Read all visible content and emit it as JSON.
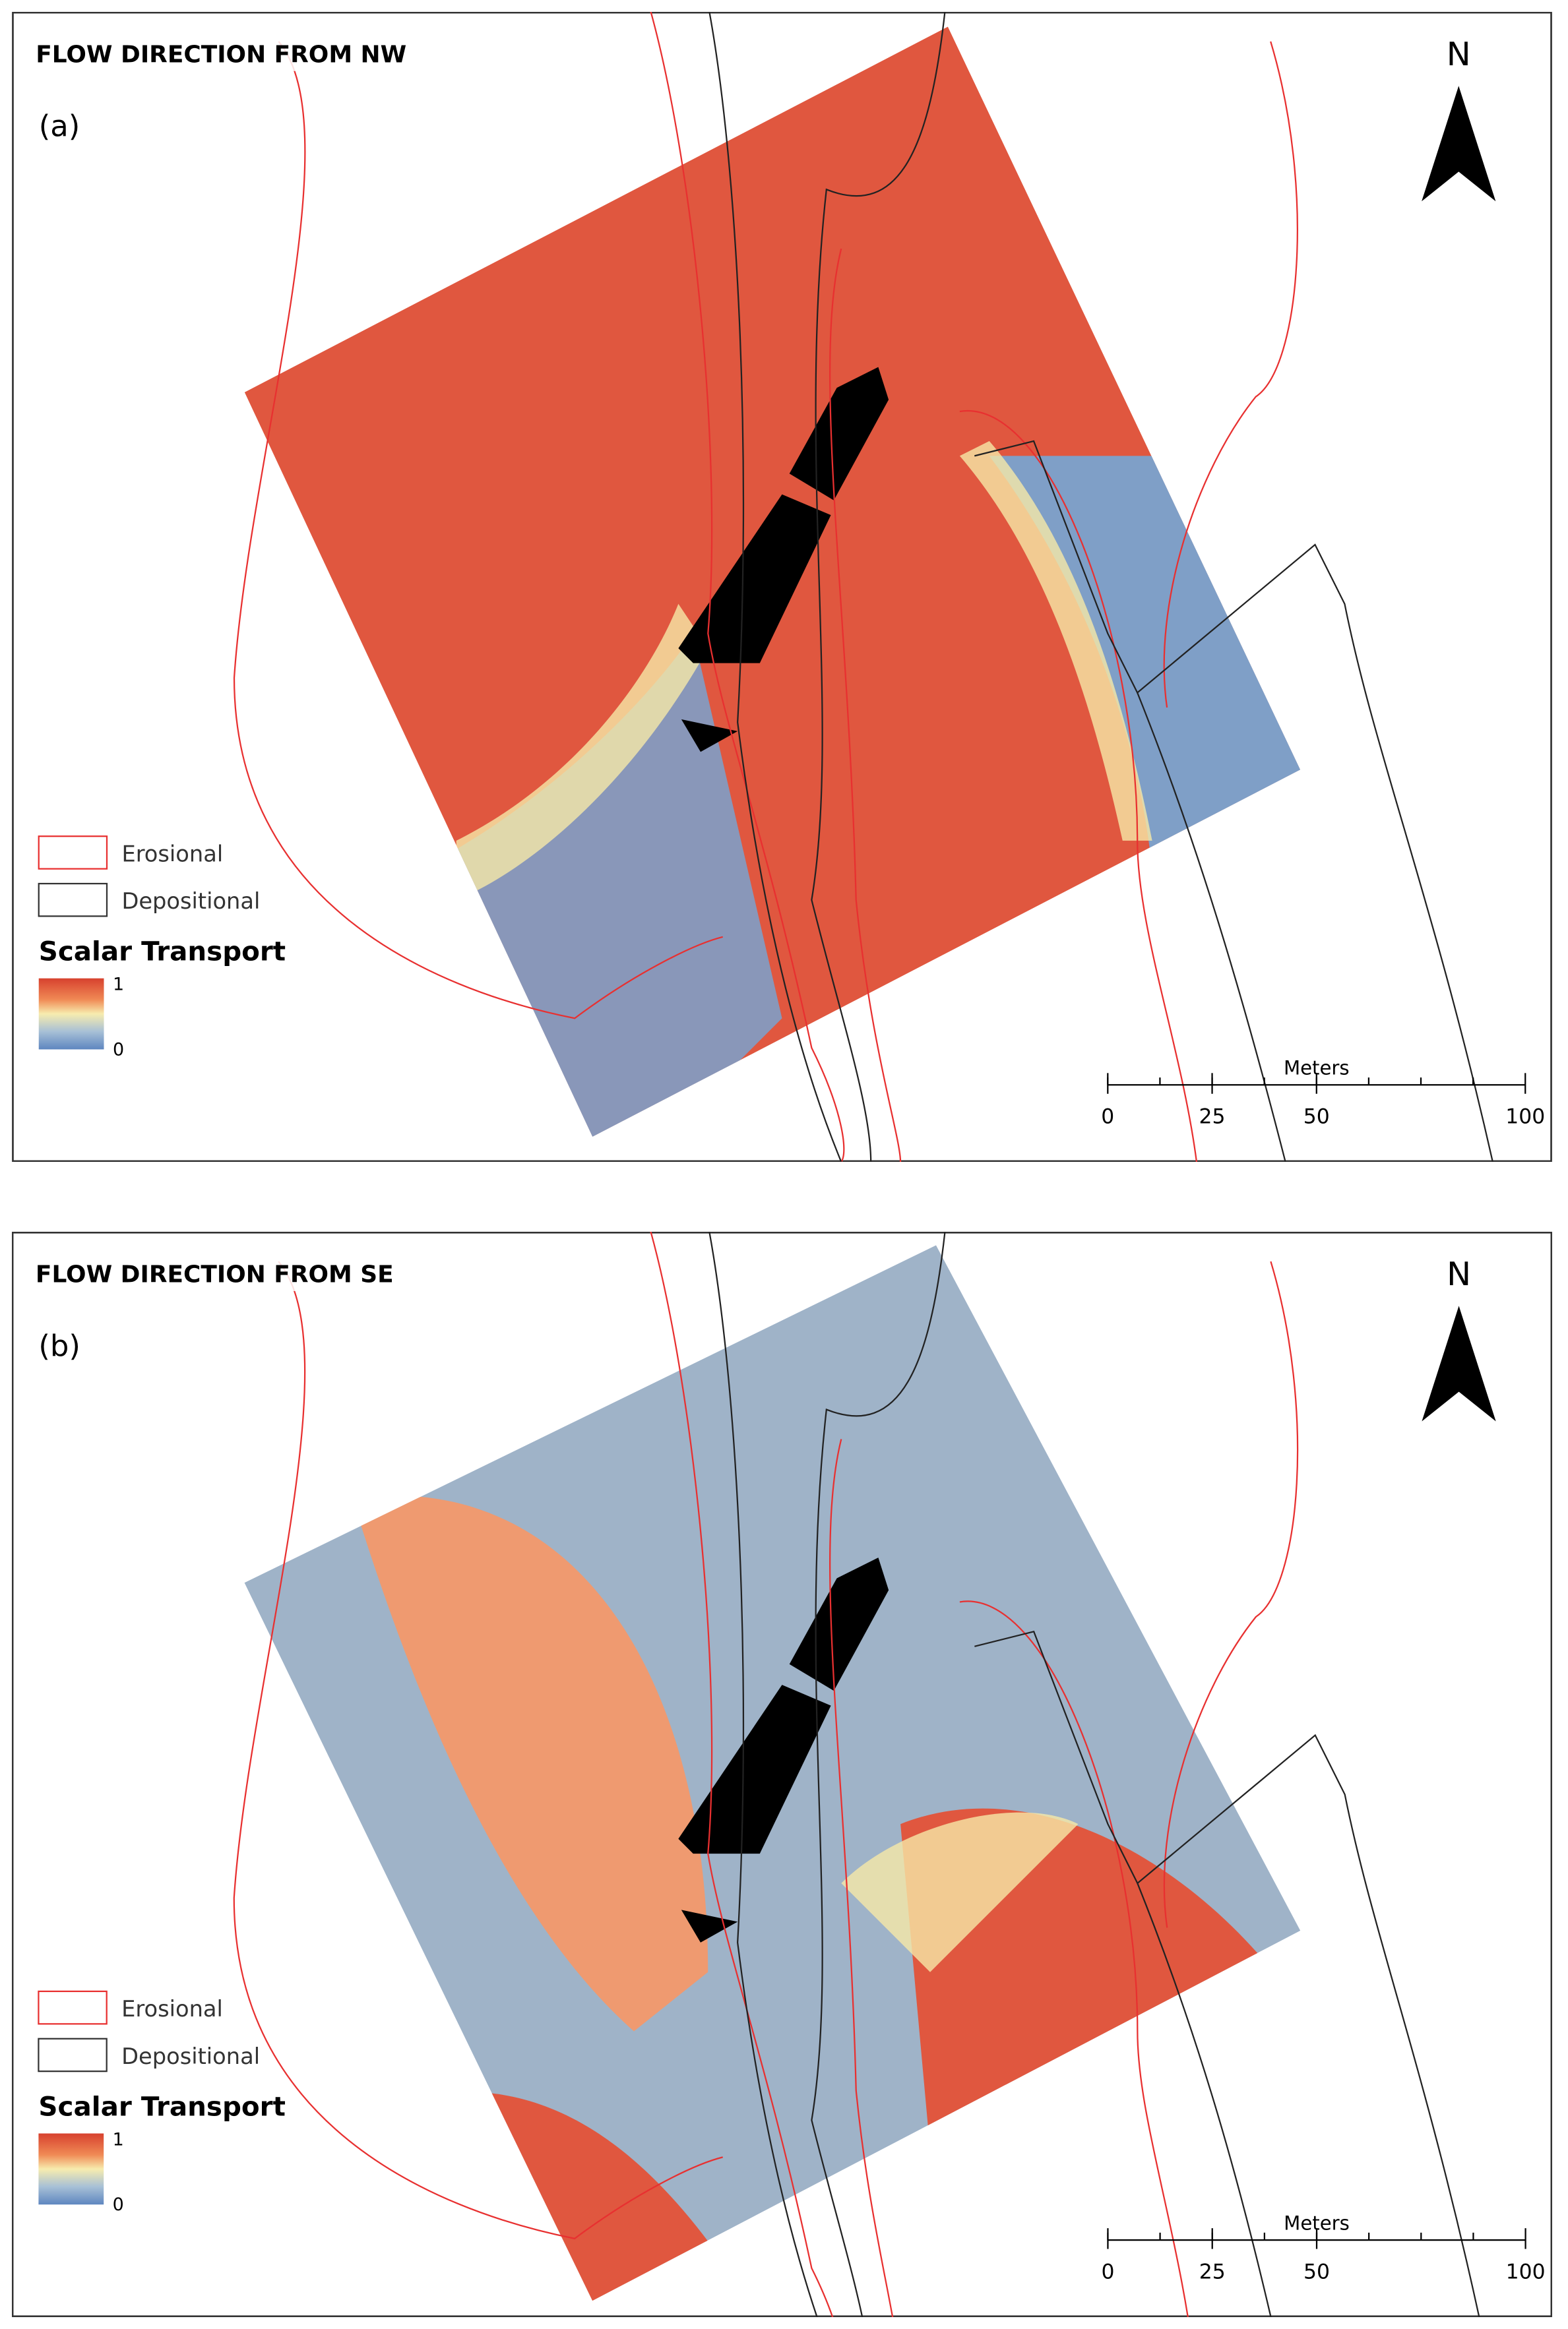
{
  "panels": [
    {
      "title": "FLOW DIRECTION FROM NW",
      "label": "(a)",
      "north": "N",
      "legend": {
        "erosional": "Erosional",
        "depositional": "Depositional",
        "ramp_title": "Scalar Transport",
        "ramp_max": "1",
        "ramp_min": "0"
      },
      "scale_bar": {
        "unit": "Meters",
        "ticks": [
          0,
          25,
          50,
          100
        ]
      }
    },
    {
      "title": "FLOW DIRECTION FROM SE",
      "label": "(b)",
      "north": "N",
      "legend": {
        "erosional": "Erosional",
        "depositional": "Depositional",
        "ramp_title": "Scalar Transport",
        "ramp_max": "1",
        "ramp_min": "0"
      },
      "scale_bar": {
        "unit": "Meters",
        "ticks": [
          0,
          25,
          50,
          100
        ]
      }
    }
  ]
}
